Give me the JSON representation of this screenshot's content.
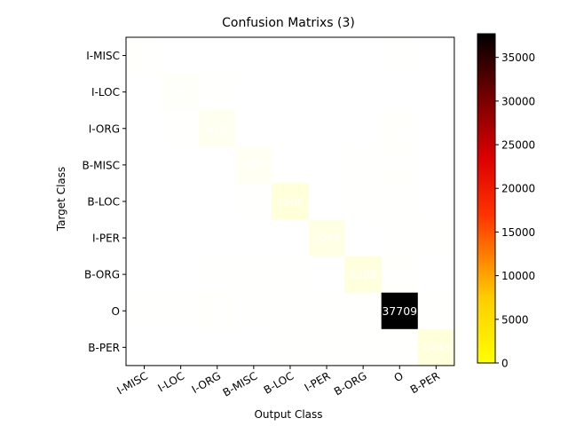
{
  "chart_data": {
    "type": "heatmap",
    "title": "Confusion Matrixs (3)",
    "xlabel": "Output Class",
    "ylabel": "Target Class",
    "x_labels": [
      "I-MISC",
      "I-LOC",
      "I-ORG",
      "B-MISC",
      "B-LOC",
      "I-PER",
      "B-ORG",
      "O",
      "B-PER"
    ],
    "y_labels": [
      "I-MISC",
      "I-LOC",
      "I-ORG",
      "B-MISC",
      "B-LOC",
      "I-PER",
      "B-ORG",
      "O",
      "B-PER"
    ],
    "matrix": [
      [
        122,
        2,
        9,
        8,
        0,
        3,
        2,
        69,
        1
      ],
      [
        7,
        199,
        24,
        0,
        11,
        1,
        0,
        15,
        0
      ],
      [
        18,
        27,
        620,
        3,
        13,
        9,
        19,
        125,
        1
      ],
      [
        6,
        0,
        0,
        495,
        17,
        0,
        36,
        133,
        15
      ],
      [
        2,
        6,
        12,
        26,
        1506,
        0,
        58,
        47,
        11
      ],
      [
        2,
        4,
        11,
        1,
        1,
        1079,
        0,
        37,
        21
      ],
      [
        2,
        0,
        41,
        47,
        99,
        0,
        1308,
        148,
        16
      ],
      [
        85,
        34,
        154,
        90,
        61,
        21,
        135,
        37709,
        34
      ],
      [
        0,
        1,
        1,
        9,
        22,
        26,
        36,
        79,
        1443
      ]
    ],
    "colormap": "hot_r",
    "colorbar": {
      "range": [
        0,
        37709
      ],
      "ticks": [
        0,
        5000,
        10000,
        15000,
        20000,
        25000,
        30000,
        35000
      ]
    },
    "text_color": "#ffffff"
  }
}
